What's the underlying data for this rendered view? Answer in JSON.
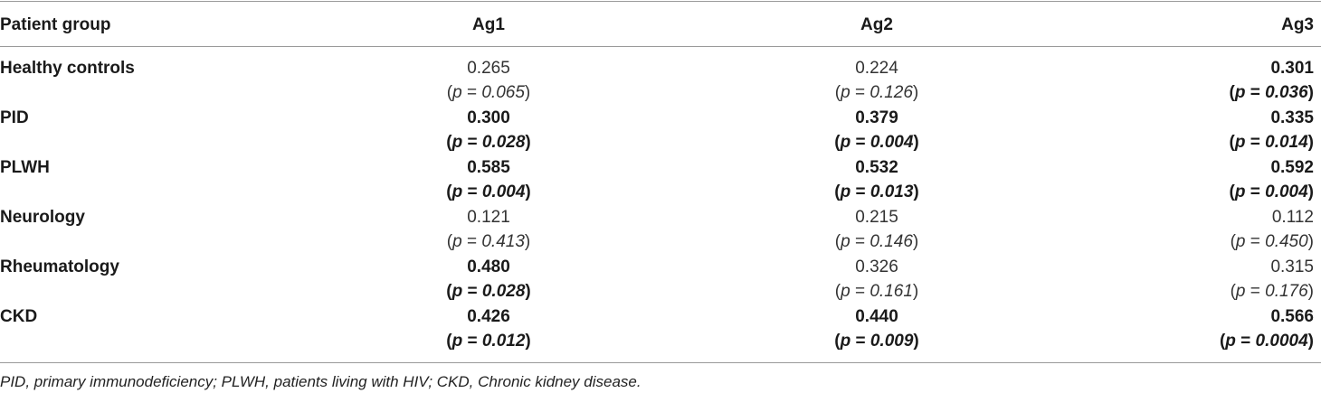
{
  "headers": {
    "group": "Patient group",
    "ag1": "Ag1",
    "ag2": "Ag2",
    "ag3": "Ag3"
  },
  "rows": [
    {
      "group": "Healthy controls",
      "ag1": {
        "r": "0.265",
        "p": "0.065",
        "bold": false
      },
      "ag2": {
        "r": "0.224",
        "p": "0.126",
        "bold": false
      },
      "ag3": {
        "r": "0.301",
        "p": "0.036",
        "bold": true
      }
    },
    {
      "group": "PID",
      "ag1": {
        "r": "0.300",
        "p": "0.028",
        "bold": true
      },
      "ag2": {
        "r": "0.379",
        "p": "0.004",
        "bold": true
      },
      "ag3": {
        "r": "0.335",
        "p": "0.014",
        "bold": true
      }
    },
    {
      "group": "PLWH",
      "ag1": {
        "r": "0.585",
        "p": "0.004",
        "bold": true
      },
      "ag2": {
        "r": "0.532",
        "p": "0.013",
        "bold": true
      },
      "ag3": {
        "r": "0.592",
        "p": "0.004",
        "bold": true
      }
    },
    {
      "group": "Neurology",
      "ag1": {
        "r": "0.121",
        "p": "0.413",
        "bold": false
      },
      "ag2": {
        "r": "0.215",
        "p": "0.146",
        "bold": false
      },
      "ag3": {
        "r": "0.112",
        "p": "0.450",
        "bold": false
      }
    },
    {
      "group": "Rheumatology",
      "ag1": {
        "r": "0.480",
        "p": "0.028",
        "bold": true
      },
      "ag2": {
        "r": "0.326",
        "p": "0.161",
        "bold": false
      },
      "ag3": {
        "r": "0.315",
        "p": "0.176",
        "bold": false
      }
    },
    {
      "group": "CKD",
      "ag1": {
        "r": "0.426",
        "p": "0.012",
        "bold": true
      },
      "ag2": {
        "r": "0.440",
        "p": "0.009",
        "bold": true
      },
      "ag3": {
        "r": "0.566",
        "p": "0.0004",
        "bold": true
      }
    }
  ],
  "p_prefix": "p",
  "footnote": "PID, primary immunodeficiency; PLWH, patients living with HIV; CKD, Chronic kidney disease."
}
